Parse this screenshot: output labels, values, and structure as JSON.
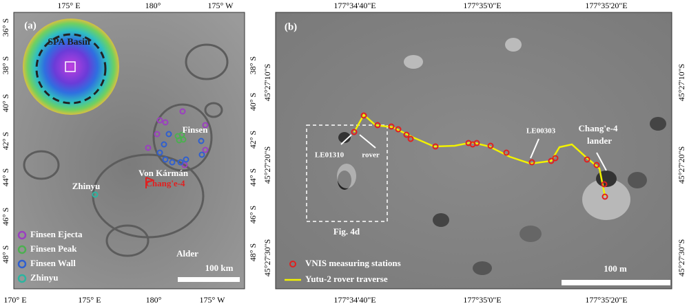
{
  "panel_a": {
    "label": "(a)",
    "top_ticks": [
      "175° E",
      "180°",
      "175° W"
    ],
    "bottom_ticks": [
      "170° E",
      "175° E",
      "180°",
      "175° W"
    ],
    "left_ticks": [
      "36° S",
      "38° S",
      "40° S",
      "42° S",
      "44° S",
      "46° S",
      "48° S"
    ],
    "right_ticks": [
      "38° S",
      "40° S",
      "42° S",
      "44° S",
      "46° S",
      "48° S"
    ],
    "inset_title": "SPA Basin",
    "places": [
      "Finsen",
      "Von Kármán",
      "Zhinyu",
      "Chang'e-4",
      "Alder"
    ],
    "scale_bar": "100 km",
    "legend": [
      {
        "label": "Finsen Ejecta",
        "color": "#9b3fc0"
      },
      {
        "label": "Finsen Peak",
        "color": "#4caf50"
      },
      {
        "label": "Finsen Wall",
        "color": "#2f5fd0"
      },
      {
        "label": "Zhinyu",
        "color": "#2bb5a0"
      }
    ]
  },
  "panel_b": {
    "label": "(b)",
    "top_ticks": [
      "177°34'40\"E",
      "177°35'0\"E",
      "177°35'20\"E"
    ],
    "bottom_ticks": [
      "177°34'40\"E",
      "177°35'0\"E",
      "177°35'20\"E"
    ],
    "left_ticks": [
      "45°27'10\"S",
      "45°27'20\"S",
      "45°27'30\"S"
    ],
    "right_ticks": [
      "45°27'10\"S",
      "45°27'20\"S",
      "45°27'30\"S"
    ],
    "annotations": [
      "LE01310",
      "rover",
      "LE00303",
      "Chang'e-4",
      "lander",
      "Fig. 4d"
    ],
    "scale_bar": "100 m",
    "legend": [
      {
        "label": "VNIS measuring stations",
        "color": "#e02020"
      },
      {
        "label": "Yutu-2 rover traverse",
        "color": "#f2f200"
      }
    ]
  }
}
